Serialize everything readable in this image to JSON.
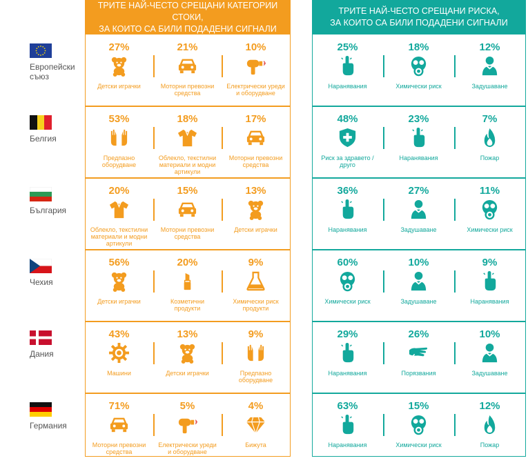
{
  "headers": {
    "products": "ТРИТЕ НАЙ-ЧЕСТО СРЕЩАНИ КАТЕГОРИИ СТОКИ,\nЗА КОИТО СА БИЛИ ПОДАДЕНИ СИГНАЛИ",
    "risks": "ТРИТЕ НАЙ-ЧЕСТО СРЕЩАНИ РИСКА,\nЗА КОИТО СА БИЛИ ПОДАДЕНИ СИГНАЛИ"
  },
  "colors": {
    "products": "#f39c1f",
    "risks": "#12a89c"
  },
  "rows": [
    {
      "country": "Европейски\nсъюз",
      "flag": "eu",
      "products": [
        {
          "pct": "27%",
          "label": "Детски играчки",
          "icon": "teddy-bear-icon"
        },
        {
          "pct": "21%",
          "label": "Моторни превозни\nсредства",
          "icon": "car-icon"
        },
        {
          "pct": "10%",
          "label": "Електрически уреди\nи оборудване",
          "icon": "hairdryer-icon"
        }
      ],
      "risks": [
        {
          "pct": "25%",
          "label": "Наранявания",
          "icon": "finger-icon"
        },
        {
          "pct": "18%",
          "label": "Химически риск",
          "icon": "gas-mask-icon"
        },
        {
          "pct": "12%",
          "label": "Задушаване",
          "icon": "choking-icon"
        }
      ]
    },
    {
      "country": "Белгия",
      "flag": "be",
      "products": [
        {
          "pct": "53%",
          "label": "Предпазно\nоборудване",
          "icon": "gloves-icon"
        },
        {
          "pct": "18%",
          "label": "Облекло, текстилни\nматериали и модни\nартикули",
          "icon": "shirt-icon"
        },
        {
          "pct": "17%",
          "label": "Моторни превозни\nсредства",
          "icon": "car-icon"
        }
      ],
      "risks": [
        {
          "pct": "48%",
          "label": "Риск за здравето /\nдруго",
          "icon": "health-shield-icon"
        },
        {
          "pct": "23%",
          "label": "Наранявания",
          "icon": "finger-icon"
        },
        {
          "pct": "7%",
          "label": "Пожар",
          "icon": "fire-icon"
        }
      ]
    },
    {
      "country": "България",
      "flag": "bg",
      "products": [
        {
          "pct": "20%",
          "label": "Облекло, текстилни\nматериали и модни\nартикули",
          "icon": "shirt-icon"
        },
        {
          "pct": "15%",
          "label": "Моторни превозни\nсредства",
          "icon": "car-icon"
        },
        {
          "pct": "13%",
          "label": "Детски играчки",
          "icon": "teddy-bear-icon"
        }
      ],
      "risks": [
        {
          "pct": "36%",
          "label": "Наранявания",
          "icon": "finger-icon"
        },
        {
          "pct": "27%",
          "label": "Задушаване",
          "icon": "choking-icon"
        },
        {
          "pct": "11%",
          "label": "Химически риск",
          "icon": "gas-mask-icon"
        }
      ]
    },
    {
      "country": "Чехия",
      "flag": "cz",
      "products": [
        {
          "pct": "56%",
          "label": "Детски играчки",
          "icon": "teddy-bear-icon"
        },
        {
          "pct": "20%",
          "label": "Козметични\nпродукти",
          "icon": "lipstick-icon"
        },
        {
          "pct": "9%",
          "label": "Химически риск\nпродукти",
          "icon": "flask-icon"
        }
      ],
      "risks": [
        {
          "pct": "60%",
          "label": "Химически риск",
          "icon": "gas-mask-icon"
        },
        {
          "pct": "10%",
          "label": "Задушаване",
          "icon": "choking-icon"
        },
        {
          "pct": "9%",
          "label": "Наранявания",
          "icon": "finger-icon"
        }
      ]
    },
    {
      "country": "Дания",
      "flag": "dk",
      "products": [
        {
          "pct": "43%",
          "label": "Машини",
          "icon": "gear-icon"
        },
        {
          "pct": "13%",
          "label": "Детски играчки",
          "icon": "teddy-bear-icon"
        },
        {
          "pct": "9%",
          "label": "Предпазно\nоборудване",
          "icon": "gloves-icon"
        }
      ],
      "risks": [
        {
          "pct": "29%",
          "label": "Наранявания",
          "icon": "finger-icon"
        },
        {
          "pct": "26%",
          "label": "Порязвания",
          "icon": "cut-hand-icon"
        },
        {
          "pct": "10%",
          "label": "Задушаване",
          "icon": "choking-icon"
        }
      ]
    },
    {
      "country": "Германия",
      "flag": "de",
      "products": [
        {
          "pct": "71%",
          "label": "Моторни превозни\nсредства",
          "icon": "car-icon"
        },
        {
          "pct": "5%",
          "label": "Електрически уреди\nи оборудване",
          "icon": "hairdryer-icon"
        },
        {
          "pct": "4%",
          "label": "Бижута",
          "icon": "diamond-icon"
        }
      ],
      "risks": [
        {
          "pct": "63%",
          "label": "Наранявания",
          "icon": "finger-icon"
        },
        {
          "pct": "15%",
          "label": "Химически риск",
          "icon": "gas-mask-icon"
        },
        {
          "pct": "12%",
          "label": "Пожар",
          "icon": "fire-icon"
        }
      ]
    }
  ]
}
